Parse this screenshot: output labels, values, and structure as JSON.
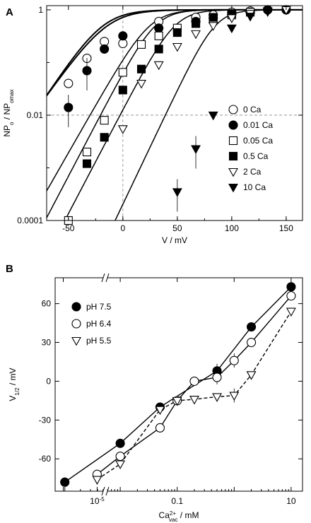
{
  "chart_data": [
    {
      "panel_label": "A",
      "type": "scatter",
      "xlabel": "V / mV",
      "ylabel_main": "NP",
      "ylabel_sub1": "o",
      "ylabel_mid": " / NP",
      "ylabel_sub2": "omax",
      "xlim": [
        -70,
        165
      ],
      "ylim": [
        0.0001,
        1.2
      ],
      "yscale": "log",
      "grid": "dashed reference lines at V=0 and y=0.01",
      "legend_position": "right-middle",
      "xticks": [
        -50,
        0,
        50,
        100,
        150
      ],
      "xtick_labels": [
        "-50",
        "0",
        "50",
        "100",
        "150"
      ],
      "yticks": [
        0.0001,
        0.01,
        1
      ],
      "ytick_labels": [
        "0.0001",
        "0.01",
        "1"
      ],
      "series": [
        {
          "name": "0 Ca",
          "marker": "circle-open",
          "x": [
            -50,
            -33,
            -17,
            0,
            33,
            67,
            83,
            100,
            117,
            133,
            150
          ],
          "y": [
            0.04,
            0.12,
            0.25,
            0.23,
            0.6,
            0.72,
            0.8,
            0.9,
            0.95,
            1.0,
            1.0
          ],
          "fit_v_half": -18,
          "fit_slope": 14
        },
        {
          "name": "0.01 Ca",
          "marker": "circle-filled",
          "x": [
            -50,
            -33,
            -17,
            0,
            33,
            67,
            83,
            100,
            117,
            133,
            150
          ],
          "y": [
            0.014,
            0.07,
            0.18,
            0.32,
            0.45,
            0.6,
            0.7,
            0.82,
            0.9,
            1.0,
            1.0
          ],
          "fit_v_half": -14,
          "fit_slope": 15
        },
        {
          "name": "0.05 Ca",
          "marker": "square-open",
          "x": [
            -50,
            -33,
            -17,
            0,
            17,
            33,
            50,
            67,
            83,
            100,
            117
          ],
          "y": [
            0.0001,
            0.002,
            0.008,
            0.065,
            0.22,
            0.32,
            0.45,
            0.55,
            0.65,
            0.8,
            0.9
          ],
          "fit_v_half": 25,
          "fit_slope": 12
        },
        {
          "name": "0.5 Ca",
          "marker": "square-filled",
          "x": [
            -33,
            -17,
            0,
            17,
            33,
            50,
            67,
            83,
            100
          ],
          "y": [
            0.0012,
            0.0038,
            0.03,
            0.075,
            0.18,
            0.37,
            0.55,
            0.72,
            0.85
          ],
          "fit_v_half": 30,
          "fit_slope": 11
        },
        {
          "name": "2 Ca",
          "marker": "triangle-down-open",
          "x": [
            0,
            17,
            33,
            50,
            67,
            83,
            100,
            117,
            133,
            150
          ],
          "y": [
            0.0055,
            0.04,
            0.09,
            0.2,
            0.35,
            0.5,
            0.7,
            0.85,
            0.95,
            1.0
          ],
          "fit_v_half": 48,
          "fit_slope": 11
        },
        {
          "name": "10 Ca",
          "marker": "triangle-down-filled",
          "x": [
            50,
            67,
            83,
            100,
            117,
            133
          ],
          "y": [
            0.00035,
            0.0023,
            0.01,
            0.45,
            0.75,
            0.92
          ],
          "fit_v_half": 85,
          "fit_slope": 10
        }
      ]
    },
    {
      "panel_label": "B",
      "type": "line",
      "xlabel_main": "Ca",
      "xlabel_sup": "2+",
      "xlabel_sub": "vac",
      "xlabel_unit": " / mM",
      "ylabel_main": "V",
      "ylabel_sub": "1/2",
      "ylabel_unit": " / mV",
      "xscale": "log (broken axis)",
      "xlim_log10": [
        -5.4,
        1.2
      ],
      "ylim": [
        -85,
        80
      ],
      "legend_position": "top-left",
      "xtick_labels": [
        "10",
        "-5",
        "0.1",
        "10"
      ],
      "yticks": [
        -60,
        -30,
        0,
        30,
        60
      ],
      "ytick_labels": [
        "-60",
        "-30",
        "0",
        "30",
        "60"
      ],
      "series": [
        {
          "name": "pH 7.5",
          "marker": "circle-filled",
          "x": [
            1e-06,
            0.01,
            0.05,
            0.5,
            2,
            10
          ],
          "y": [
            -78,
            -48,
            -20,
            8,
            42,
            73
          ]
        },
        {
          "name": "pH 6.4",
          "marker": "circle-open",
          "x": [
            1e-05,
            0.01,
            0.05,
            0.1,
            0.2,
            0.5,
            1,
            2,
            10
          ],
          "y": [
            -72,
            -58,
            -36,
            -15,
            0,
            3,
            16,
            30,
            66
          ]
        },
        {
          "name": "pH 5.5",
          "marker": "triangle-down-open",
          "x": [
            1e-05,
            0.01,
            0.05,
            0.1,
            0.2,
            0.5,
            1,
            2,
            10
          ],
          "y": [
            -76,
            -64,
            -22,
            -15,
            -14,
            -12,
            -11,
            5,
            54
          ]
        }
      ]
    }
  ]
}
